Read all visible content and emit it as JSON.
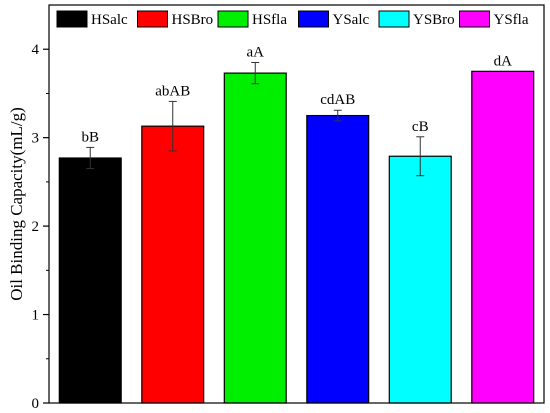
{
  "chart_data": {
    "type": "bar",
    "title": "",
    "xlabel": "",
    "ylabel": "Oil Binding Capacity(mL/g)",
    "ylim": [
      0,
      4.5
    ],
    "yticks": [
      0,
      1,
      2,
      3,
      4
    ],
    "grid": false,
    "legend_position": "top",
    "categories": [
      "HSalc",
      "HSBro",
      "HSfla",
      "YSalc",
      "YSBro",
      "YSfla"
    ],
    "series": [
      {
        "values": [
          2.77,
          3.13,
          3.73,
          3.25,
          2.79,
          3.75
        ],
        "errors": [
          0.12,
          0.28,
          0.12,
          0.06,
          0.22,
          0.0
        ],
        "data_labels": [
          "bB",
          "abAB",
          "aA",
          "cdAB",
          "cB",
          "dA"
        ],
        "colors": [
          "#000000",
          "#ff0000",
          "#00ee00",
          "#0000ff",
          "#00ffff",
          "#ff00ff"
        ]
      }
    ]
  }
}
